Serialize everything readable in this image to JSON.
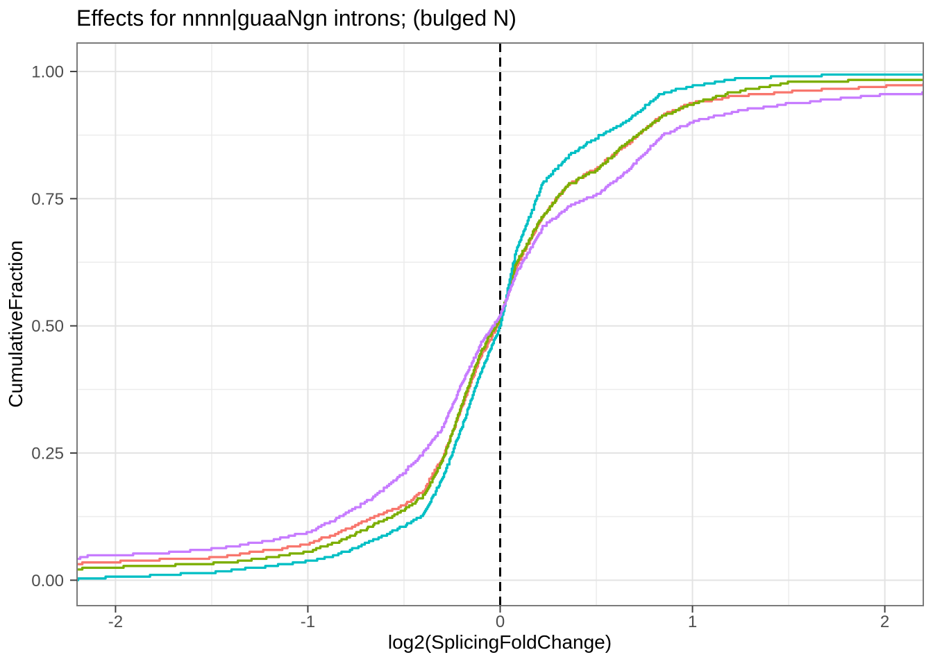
{
  "figure": {
    "background": "#ffffff",
    "panel_border_color": "#7a7a7a",
    "grid_major_color": "#e3e3e3",
    "grid_minor_color": "#ececec",
    "tick_color": "#404040",
    "tick_label_color": "#4d4d4d"
  },
  "chart_data": {
    "type": "line",
    "subtype": "ecdf",
    "title": "Effects for nnnn|guaaNgn introns; (bulged N)",
    "xlabel": "log2(SplicingFoldChange)",
    "ylabel": "CumulativeFraction",
    "xlim": [
      -2.2,
      2.2
    ],
    "ylim": [
      -0.05,
      1.056
    ],
    "x_ticks": [
      -2,
      -1,
      0,
      1,
      2
    ],
    "x_tick_labels": [
      "-2",
      "-1",
      "0",
      "1",
      "2"
    ],
    "x_minor_ticks": [
      -1.5,
      -0.5,
      0.5,
      1.5
    ],
    "y_ticks": [
      0,
      0.25,
      0.5,
      0.75,
      1.0
    ],
    "y_tick_labels": [
      "0.00",
      "0.25",
      "0.50",
      "0.75",
      "1.00"
    ],
    "y_minor_ticks": [
      0.125,
      0.375,
      0.625,
      0.875
    ],
    "grid": true,
    "legend": "none",
    "reference_line": {
      "x": 0,
      "style": "dashed",
      "color": "#000000"
    },
    "series": [
      {
        "name": "ecdf-salmon",
        "color": "#F8766D",
        "points": [
          [
            -2.2,
            0.031
          ],
          [
            -2.0,
            0.034
          ],
          [
            -1.75,
            0.038
          ],
          [
            -1.5,
            0.042
          ],
          [
            -1.25,
            0.054
          ],
          [
            -1.0,
            0.07
          ],
          [
            -0.85,
            0.09
          ],
          [
            -0.65,
            0.123
          ],
          [
            -0.5,
            0.146
          ],
          [
            -0.4,
            0.175
          ],
          [
            -0.3,
            0.24
          ],
          [
            -0.2,
            0.34
          ],
          [
            -0.1,
            0.44
          ],
          [
            0.0,
            0.51
          ],
          [
            0.08,
            0.615
          ],
          [
            0.22,
            0.715
          ],
          [
            0.35,
            0.775
          ],
          [
            0.5,
            0.808
          ],
          [
            0.65,
            0.853
          ],
          [
            0.84,
            0.912
          ],
          [
            1.0,
            0.937
          ],
          [
            1.2,
            0.948
          ],
          [
            1.5,
            0.958
          ],
          [
            1.75,
            0.963
          ],
          [
            2.0,
            0.969
          ],
          [
            2.2,
            0.972
          ]
        ]
      },
      {
        "name": "ecdf-green",
        "color": "#7CAE00",
        "points": [
          [
            -2.2,
            0.02
          ],
          [
            -2.0,
            0.023
          ],
          [
            -1.75,
            0.026
          ],
          [
            -1.5,
            0.03
          ],
          [
            -1.25,
            0.04
          ],
          [
            -1.0,
            0.055
          ],
          [
            -0.85,
            0.072
          ],
          [
            -0.65,
            0.109
          ],
          [
            -0.5,
            0.136
          ],
          [
            -0.4,
            0.165
          ],
          [
            -0.3,
            0.235
          ],
          [
            -0.2,
            0.345
          ],
          [
            -0.1,
            0.45
          ],
          [
            0.0,
            0.515
          ],
          [
            0.08,
            0.62
          ],
          [
            0.22,
            0.716
          ],
          [
            0.35,
            0.775
          ],
          [
            0.5,
            0.805
          ],
          [
            0.65,
            0.857
          ],
          [
            0.84,
            0.91
          ],
          [
            1.0,
            0.935
          ],
          [
            1.2,
            0.957
          ],
          [
            1.5,
            0.976
          ],
          [
            1.75,
            0.978
          ],
          [
            2.0,
            0.981
          ],
          [
            2.2,
            0.982
          ]
        ]
      },
      {
        "name": "ecdf-teal",
        "color": "#00BFC4",
        "points": [
          [
            -2.2,
            0.001
          ],
          [
            -2.0,
            0.003
          ],
          [
            -1.75,
            0.007
          ],
          [
            -1.5,
            0.014
          ],
          [
            -1.25,
            0.022
          ],
          [
            -1.0,
            0.035
          ],
          [
            -0.85,
            0.048
          ],
          [
            -0.65,
            0.078
          ],
          [
            -0.5,
            0.105
          ],
          [
            -0.4,
            0.128
          ],
          [
            -0.3,
            0.2
          ],
          [
            -0.2,
            0.3
          ],
          [
            -0.1,
            0.41
          ],
          [
            0.0,
            0.5
          ],
          [
            0.08,
            0.645
          ],
          [
            0.22,
            0.778
          ],
          [
            0.35,
            0.832
          ],
          [
            0.5,
            0.869
          ],
          [
            0.65,
            0.9
          ],
          [
            0.84,
            0.956
          ],
          [
            1.0,
            0.969
          ],
          [
            1.2,
            0.982
          ],
          [
            1.5,
            0.988
          ],
          [
            1.75,
            0.99
          ],
          [
            2.0,
            0.992
          ],
          [
            2.2,
            0.993
          ]
        ]
      },
      {
        "name": "ecdf-purple",
        "color": "#C77CFF",
        "points": [
          [
            -2.2,
            0.044
          ],
          [
            -2.0,
            0.047
          ],
          [
            -1.75,
            0.052
          ],
          [
            -1.5,
            0.059
          ],
          [
            -1.25,
            0.072
          ],
          [
            -1.0,
            0.092
          ],
          [
            -0.85,
            0.12
          ],
          [
            -0.65,
            0.164
          ],
          [
            -0.5,
            0.211
          ],
          [
            -0.4,
            0.25
          ],
          [
            -0.3,
            0.3
          ],
          [
            -0.2,
            0.385
          ],
          [
            -0.1,
            0.465
          ],
          [
            0.0,
            0.52
          ],
          [
            0.08,
            0.6
          ],
          [
            0.22,
            0.692
          ],
          [
            0.35,
            0.732
          ],
          [
            0.5,
            0.757
          ],
          [
            0.65,
            0.8
          ],
          [
            0.84,
            0.873
          ],
          [
            1.0,
            0.899
          ],
          [
            1.2,
            0.918
          ],
          [
            1.5,
            0.935
          ],
          [
            1.75,
            0.944
          ],
          [
            2.0,
            0.952
          ],
          [
            2.2,
            0.955
          ]
        ]
      }
    ]
  }
}
